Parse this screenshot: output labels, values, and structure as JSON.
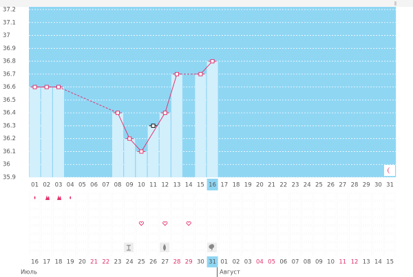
{
  "chart_data": {
    "type": "line",
    "categories": [
      "01",
      "02",
      "03",
      "04",
      "05",
      "06",
      "07",
      "08",
      "09",
      "10",
      "11",
      "12",
      "13",
      "14",
      "15",
      "16",
      "17",
      "18",
      "19",
      "20",
      "21",
      "22",
      "23",
      "24",
      "25",
      "26",
      "27",
      "28",
      "29",
      "30",
      "31"
    ],
    "highlight": "16",
    "series": [
      {
        "color": "#e2336b",
        "values": [
          36.6,
          36.6,
          36.6,
          null,
          null,
          null,
          null,
          36.4,
          36.2,
          36.1,
          null,
          36.4,
          36.7,
          null,
          36.7,
          36.8,
          null,
          null,
          null,
          null,
          null,
          null,
          null,
          null,
          null,
          null,
          null,
          null,
          null,
          null,
          null
        ]
      }
    ],
    "excluded_values": [
      null,
      null,
      null,
      null,
      null,
      null,
      null,
      null,
      null,
      null,
      36.3,
      null,
      null,
      null,
      null,
      null,
      null,
      null,
      null,
      null,
      null,
      null,
      null,
      null,
      null,
      null,
      null,
      null,
      null,
      null,
      null
    ],
    "ylim": [
      35.9,
      37.2
    ],
    "yticks": [
      35.9,
      36,
      36.1,
      36.2,
      36.3,
      36.4,
      36.5,
      36.6,
      36.7,
      36.8,
      36.9,
      37,
      37.1,
      37.2
    ],
    "grid": true,
    "background_color": "#8fd6f3",
    "bar_color": "#d2effc",
    "dates": [
      {
        "label": "16",
        "weekend": false
      },
      {
        "label": "17",
        "weekend": false
      },
      {
        "label": "18",
        "weekend": false
      },
      {
        "label": "19",
        "weekend": false
      },
      {
        "label": "20",
        "weekend": false
      },
      {
        "label": "21",
        "weekend": true
      },
      {
        "label": "22",
        "weekend": true
      },
      {
        "label": "23",
        "weekend": false
      },
      {
        "label": "24",
        "weekend": false
      },
      {
        "label": "25",
        "weekend": false
      },
      {
        "label": "26",
        "weekend": false
      },
      {
        "label": "27",
        "weekend": false
      },
      {
        "label": "28",
        "weekend": true
      },
      {
        "label": "29",
        "weekend": true
      },
      {
        "label": "30",
        "weekend": false
      },
      {
        "label": "31",
        "weekend": false,
        "highlight": true
      },
      {
        "label": "01",
        "weekend": false
      },
      {
        "label": "02",
        "weekend": false
      },
      {
        "label": "03",
        "weekend": false
      },
      {
        "label": "04",
        "weekend": true
      },
      {
        "label": "05",
        "weekend": true
      },
      {
        "label": "06",
        "weekend": false
      },
      {
        "label": "07",
        "weekend": false
      },
      {
        "label": "08",
        "weekend": false
      },
      {
        "label": "09",
        "weekend": false
      },
      {
        "label": "10",
        "weekend": false
      },
      {
        "label": "11",
        "weekend": true
      },
      {
        "label": "12",
        "weekend": true
      },
      {
        "label": "13",
        "weekend": false
      },
      {
        "label": "14",
        "weekend": false
      },
      {
        "label": "15",
        "weekend": false
      }
    ],
    "months": [
      "Июль",
      "Август"
    ]
  }
}
